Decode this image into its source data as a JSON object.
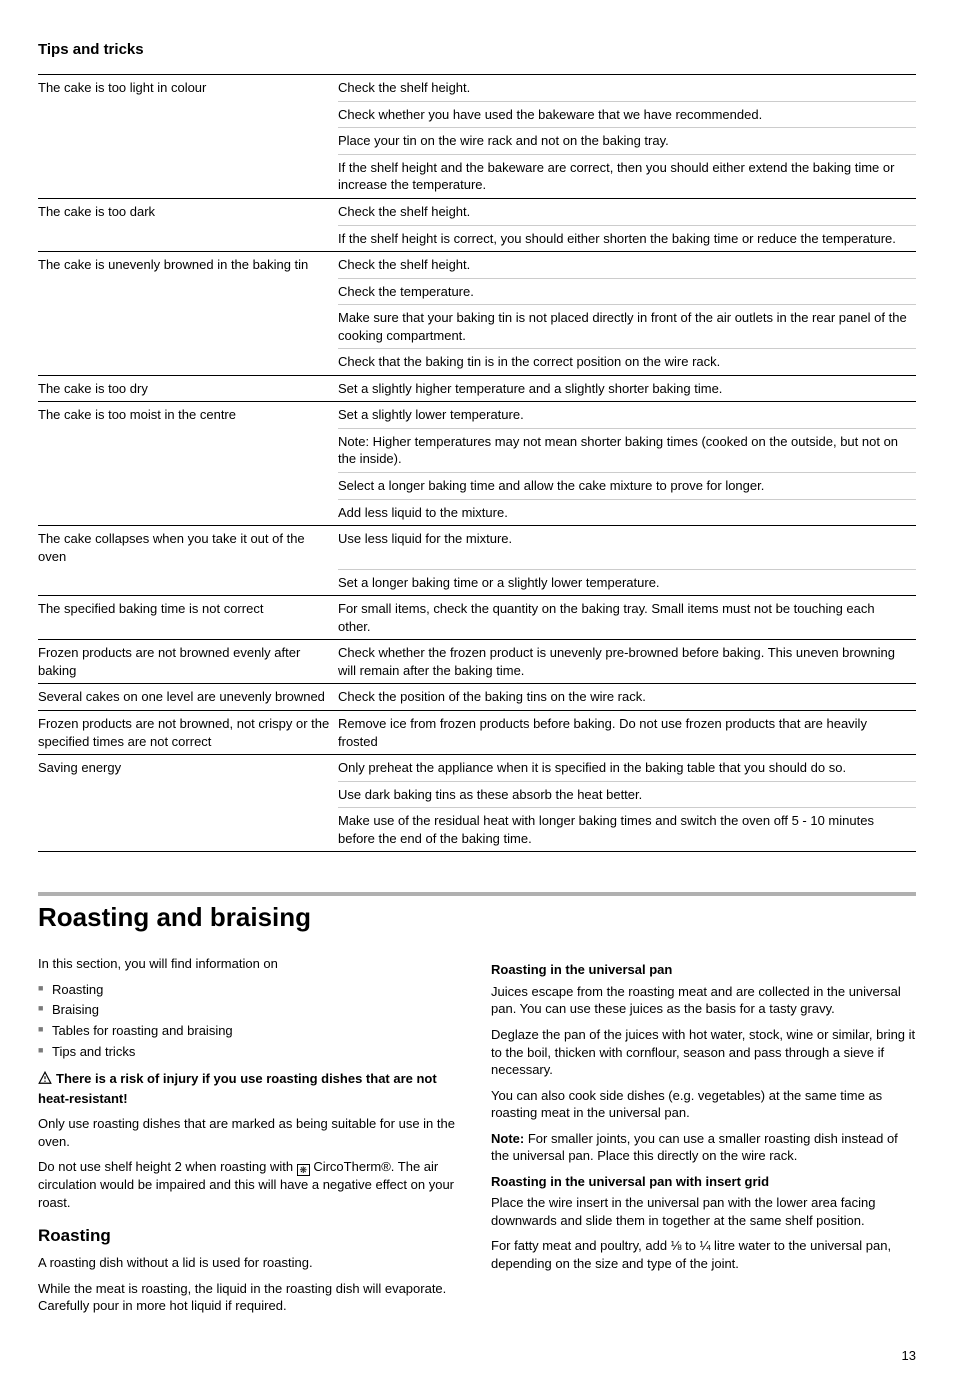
{
  "tips_heading": "Tips and tricks",
  "tips_table": [
    {
      "problem": "The cake is too light in colour",
      "solutions": [
        "Check the shelf height.",
        "Check whether you have used the bakeware that we have recommended.",
        "Place your tin on the wire rack and not on the baking tray.",
        "If the shelf height and the bakeware are correct, then you should either extend the baking time or increase the temperature."
      ]
    },
    {
      "problem": "The cake is too dark",
      "solutions": [
        "Check the shelf height.",
        "If the shelf height is correct, you should either shorten the baking time or reduce the temperature."
      ]
    },
    {
      "problem": "The cake is unevenly browned in the baking tin",
      "solutions": [
        "Check the shelf height.",
        "Check the temperature.",
        "Make sure that your baking tin is not placed directly in front of the air outlets in the rear panel of the cooking compartment.",
        "Check that the baking tin is in the correct position on the wire rack."
      ]
    },
    {
      "problem": "The cake is too dry",
      "solutions": [
        "Set a slightly higher temperature and a slightly shorter baking time."
      ]
    },
    {
      "problem": "The cake is too moist in the centre",
      "solutions": [
        "Set a slightly lower temperature.",
        "Note: Higher temperatures may not mean shorter baking times (cooked on the outside, but not on the inside).",
        "Select a longer baking time and allow the cake mixture to prove for longer.",
        "Add less liquid to the mixture."
      ]
    },
    {
      "problem": "The cake collapses when you take it out of the oven",
      "solutions": [
        "Use less liquid for the mixture.",
        "Set a longer baking time or a slightly lower temperature."
      ]
    },
    {
      "problem": "The specified baking time is not correct",
      "solutions": [
        "For small items, check the quantity on the baking tray. Small items must not be touching each other."
      ]
    },
    {
      "problem": "Frozen products are not browned evenly after baking",
      "solutions": [
        "Check whether the frozen product is unevenly pre-browned before baking. This uneven browning will remain after the baking time."
      ]
    },
    {
      "problem": "Several cakes on one level are unevenly browned",
      "solutions": [
        "Check the position of the baking tins on the wire rack."
      ]
    },
    {
      "problem": "Frozen products are not browned, not crispy or the specified times are not correct",
      "solutions": [
        "Remove ice from frozen products before baking. Do not use frozen products that are heavily frosted"
      ]
    },
    {
      "problem": "Saving energy",
      "solutions": [
        "Only preheat the appliance when it is specified in the baking table that you should do so.",
        "Use dark baking tins as these absorb the heat better.",
        "Make use of the residual heat with longer baking times and switch the oven off 5 - 10 minutes before the end of the baking time."
      ]
    }
  ],
  "section_heading": "Roasting and braising",
  "left_intro": "In this section, you will find information on",
  "left_bullets": [
    "Roasting",
    "Braising",
    "Tables for roasting and braising",
    "Tips and tricks"
  ],
  "warning_bold": "There is a risk of injury if you use roasting dishes that are not heat-resistant!",
  "warning_p1": "Only use roasting dishes that are marked as being suitable for use in the oven.",
  "warning_p2_a": "Do not use shelf height 2 when roasting with ",
  "warning_p2_b": " CircoTherm®. The air circulation would be impaired and this will have a negative effect on your roast.",
  "roasting_heading": "Roasting",
  "roasting_p1": "A roasting dish without a lid is used for roasting.",
  "roasting_p2": "While the meat is roasting, the liquid in the roasting dish will evaporate. Carefully pour in more hot liquid if required.",
  "r1_heading": "Roasting in the universal pan",
  "r1_p1": "Juices escape from the roasting meat and are collected in the universal pan. You can use these juices as the basis for a tasty gravy.",
  "r1_p2": "Deglaze the pan of the juices with hot water, stock, wine or similar, bring it to the boil, thicken with cornflour, season and pass through a sieve if necessary.",
  "r1_p3": "You can also cook side dishes (e.g. vegetables) at the same time as roasting meat in the universal pan.",
  "note_label": "Note: ",
  "note_text": "For smaller joints, you can use a smaller roasting dish instead of the universal pan. Place this directly on the wire rack.",
  "r2_heading": "Roasting in the universal pan with insert grid",
  "r2_p1": "Place the wire insert in the universal pan with the lower area facing downwards and slide them in together at the same shelf position.",
  "r2_p2": "For fatty meat and poultry, add ⅛ to ¼ litre water to the universal pan, depending on the size and type of the joint.",
  "page_number": "13",
  "circo_glyph": "❋"
}
